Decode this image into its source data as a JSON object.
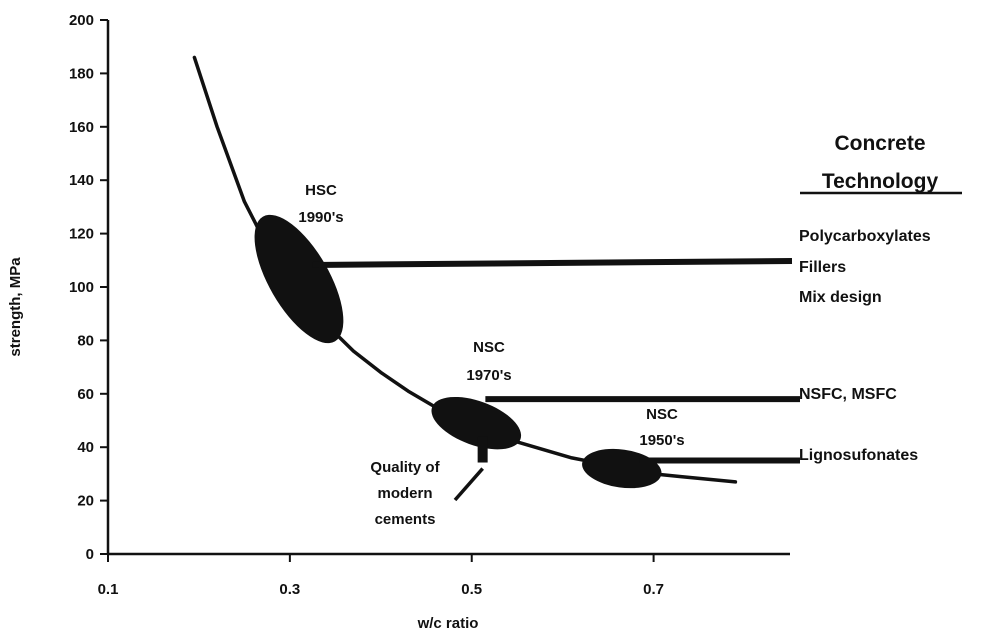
{
  "chart_data": {
    "type": "line",
    "title": "",
    "xlabel": "w/c ratio",
    "ylabel": "strength, MPa",
    "xlim": [
      0.1,
      0.85
    ],
    "ylim": [
      0,
      200
    ],
    "x_ticks": [
      0.1,
      0.3,
      0.5,
      0.7
    ],
    "x_tick_labels": [
      "0.1",
      "0.3",
      "0.5",
      "0.7"
    ],
    "y_ticks": [
      0,
      20,
      40,
      60,
      80,
      100,
      120,
      140,
      160,
      180,
      200
    ],
    "y_tick_labels": [
      "0",
      "20",
      "40",
      "60",
      "80",
      "100",
      "120",
      "140",
      "160",
      "180",
      "200"
    ],
    "grid": false,
    "series": [
      {
        "name": "",
        "x": [
          0.195,
          0.22,
          0.25,
          0.28,
          0.31,
          0.34,
          0.37,
          0.4,
          0.43,
          0.46,
          0.49,
          0.52,
          0.55,
          0.58,
          0.61,
          0.64,
          0.67,
          0.7,
          0.73,
          0.76,
          0.79
        ],
        "y": [
          186,
          160,
          132,
          112,
          98,
          86,
          76,
          68,
          61,
          55,
          50,
          46,
          42,
          39,
          36,
          34,
          32,
          30,
          29,
          28,
          27
        ]
      }
    ],
    "regions": [
      {
        "id": "hsc",
        "cx": 0.31,
        "cy": 103,
        "label": "HSC\n1990's"
      },
      {
        "id": "nsc70",
        "cx": 0.505,
        "cy": 49,
        "label": "NSC\n1970's"
      },
      {
        "id": "nsc50",
        "cx": 0.665,
        "cy": 32,
        "label": "NSC\n1950's"
      }
    ],
    "annotations": {
      "hsc_label": [
        "HSC",
        "1990's"
      ],
      "nsc70_label": [
        "NSC",
        "1970's"
      ],
      "nsc50_label": [
        "NSC",
        "1950's"
      ],
      "cement_label": [
        "Quality of",
        "modern",
        "cements"
      ]
    },
    "side_panel": {
      "title": [
        "Concrete",
        "Technology"
      ],
      "groups": [
        {
          "items": [
            "Polycarboxylates",
            "Fillers",
            "Mix design"
          ],
          "pointer_y": 109
        },
        {
          "items": [
            "NSFC, MSFC"
          ],
          "pointer_y": 58
        },
        {
          "items": [
            "Lignosufonates"
          ],
          "pointer_y": 35
        }
      ]
    }
  }
}
